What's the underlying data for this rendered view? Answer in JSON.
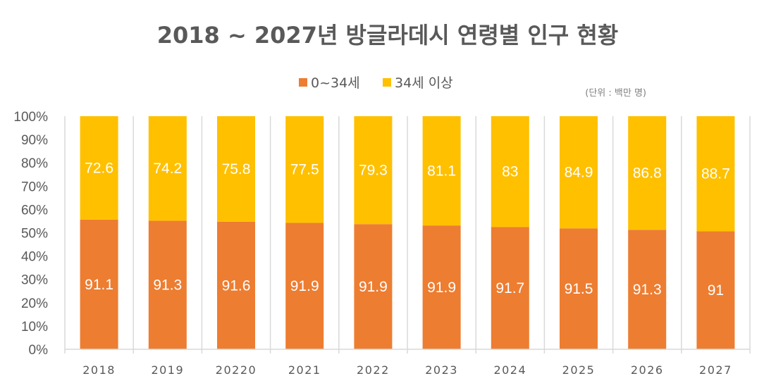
{
  "chart_data": {
    "type": "bar",
    "stacked": true,
    "normalized": true,
    "title": "2018 ~ 2027년 방글라데시 연령별 인구 현황",
    "unit_note": "(단위 : 백만 명)",
    "categories": [
      "2018",
      "2019",
      "20220",
      "2021",
      "2022",
      "2023",
      "2024",
      "2025",
      "2026",
      "2027"
    ],
    "series": [
      {
        "name": "0~34세",
        "color": "#ED7D31",
        "values": [
          91.1,
          91.3,
          91.6,
          91.9,
          91.9,
          91.9,
          91.7,
          91.5,
          91.3,
          91
        ]
      },
      {
        "name": "34세 이상",
        "color": "#FFC000",
        "values": [
          72.6,
          74.2,
          75.8,
          77.5,
          79.3,
          81.1,
          83,
          84.9,
          86.8,
          88.7
        ]
      }
    ],
    "yticks": [
      "0%",
      "10%",
      "20%",
      "30%",
      "40%",
      "50%",
      "60%",
      "70%",
      "80%",
      "90%",
      "100%"
    ],
    "ylim": [
      0,
      100
    ],
    "xlabel": "",
    "ylabel": "",
    "legend": "top-center",
    "grid": "vertical category separators"
  }
}
